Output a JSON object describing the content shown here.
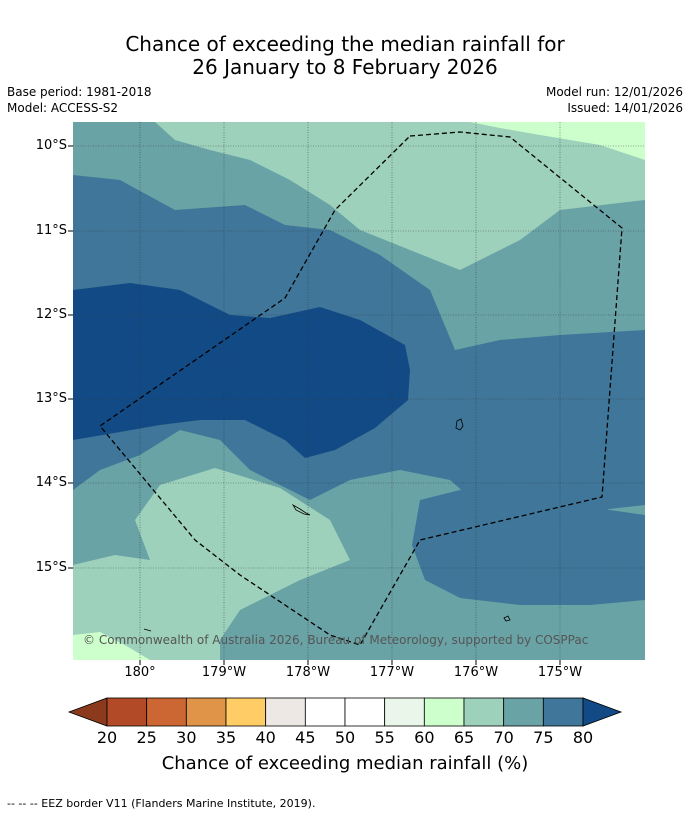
{
  "title_line1": "Chance of exceeding the median rainfall for",
  "title_line2": "26 January to 8 February 2026",
  "base_period": "Base period: 1981-2018",
  "model": "Model: ACCESS-S2",
  "model_run": "Model run: 12/01/2026",
  "issued": "Issued: 14/01/2026",
  "copyright": "© Commonwealth of Australia 2026, Bureau of Meteorology, supported by COSPPac",
  "lat_labels": [
    "10°S",
    "11°S",
    "12°S",
    "13°S",
    "14°S",
    "15°S"
  ],
  "lon_labels": [
    "180°",
    "179°W",
    "178°W",
    "177°W",
    "176°W",
    "175°W"
  ],
  "colorbar": {
    "ticks": [
      "20",
      "25",
      "30",
      "35",
      "40",
      "45",
      "50",
      "55",
      "60",
      "65",
      "70",
      "75",
      "80"
    ],
    "colors": [
      "#8b3a1e",
      "#b24a28",
      "#cc6633",
      "#e09447",
      "#ffcc66",
      "#ede8e3",
      "#ffffff",
      "#ffffff",
      "#eaf6ea",
      "#ccffcc",
      "#9dd1bb",
      "#6aa3a6",
      "#3f7699",
      "#124a85"
    ],
    "label": "Chance of exceeding median rainfall (%)"
  },
  "footer": "--  --  -- EEZ border V11 (Flanders Marine Institute, 2019)."
}
